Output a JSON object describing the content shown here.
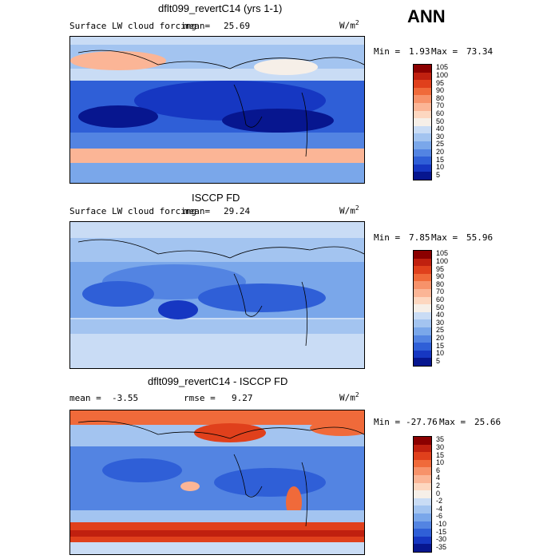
{
  "season": "ANN",
  "panels": [
    {
      "title": "dflt099_revertC14 (yrs 1-1)",
      "left_label": "Surface LW cloud forcing",
      "mean_label": "mean=",
      "mean_value": "25.69",
      "units": "W/m",
      "units_sup": "2",
      "min_label": "Min =",
      "min_value": "1.93",
      "max_label": "Max =",
      "max_value": "73.34",
      "colorbar": [
        "105",
        "100",
        "95",
        "90",
        "80",
        "70",
        "60",
        "50",
        "40",
        "30",
        "25",
        "20",
        "15",
        "10",
        "5"
      ]
    },
    {
      "title": "ISCCP FD",
      "left_label": "Surface LW cloud forcing",
      "mean_label": "mean=",
      "mean_value": "29.24",
      "units": "W/m",
      "units_sup": "2",
      "min_label": "Min =",
      "min_value": "7.85",
      "max_label": "Max =",
      "max_value": "55.96",
      "colorbar": [
        "105",
        "100",
        "95",
        "90",
        "80",
        "70",
        "60",
        "50",
        "40",
        "30",
        "25",
        "20",
        "15",
        "10",
        "5"
      ]
    },
    {
      "title": "dflt099_revertC14 - ISCCP FD",
      "mean_label": "mean =",
      "mean_value": "-3.55",
      "rmse_label": "rmse =",
      "rmse_value": "9.27",
      "units": "W/m",
      "units_sup": "2",
      "min_label": "Min =",
      "min_value": "-27.76",
      "max_label": "Max =",
      "max_value": "25.66",
      "colorbar": [
        "35",
        "30",
        "15",
        "10",
        "6",
        "4",
        "2",
        "0",
        "-2",
        "-4",
        "-6",
        "-10",
        "-15",
        "-30",
        "-35"
      ]
    }
  ],
  "colors": {
    "scale_abs": [
      "#8b0000",
      "#c0200f",
      "#e0401c",
      "#f06a3a",
      "#f7926a",
      "#fbb596",
      "#fdd7c0",
      "#f6efe8",
      "#c9dcf5",
      "#a3c4f0",
      "#7aa7ea",
      "#5384e2",
      "#2f5fd7",
      "#1637c2",
      "#07168f"
    ],
    "scale_diff": [
      "#8b0000",
      "#c0200f",
      "#e0401c",
      "#f06a3a",
      "#f7926a",
      "#fbb596",
      "#fdd7c0",
      "#f6efe8",
      "#c9dcf5",
      "#a3c4f0",
      "#7aa7ea",
      "#5384e2",
      "#2f5fd7",
      "#1637c2",
      "#07168f"
    ]
  }
}
